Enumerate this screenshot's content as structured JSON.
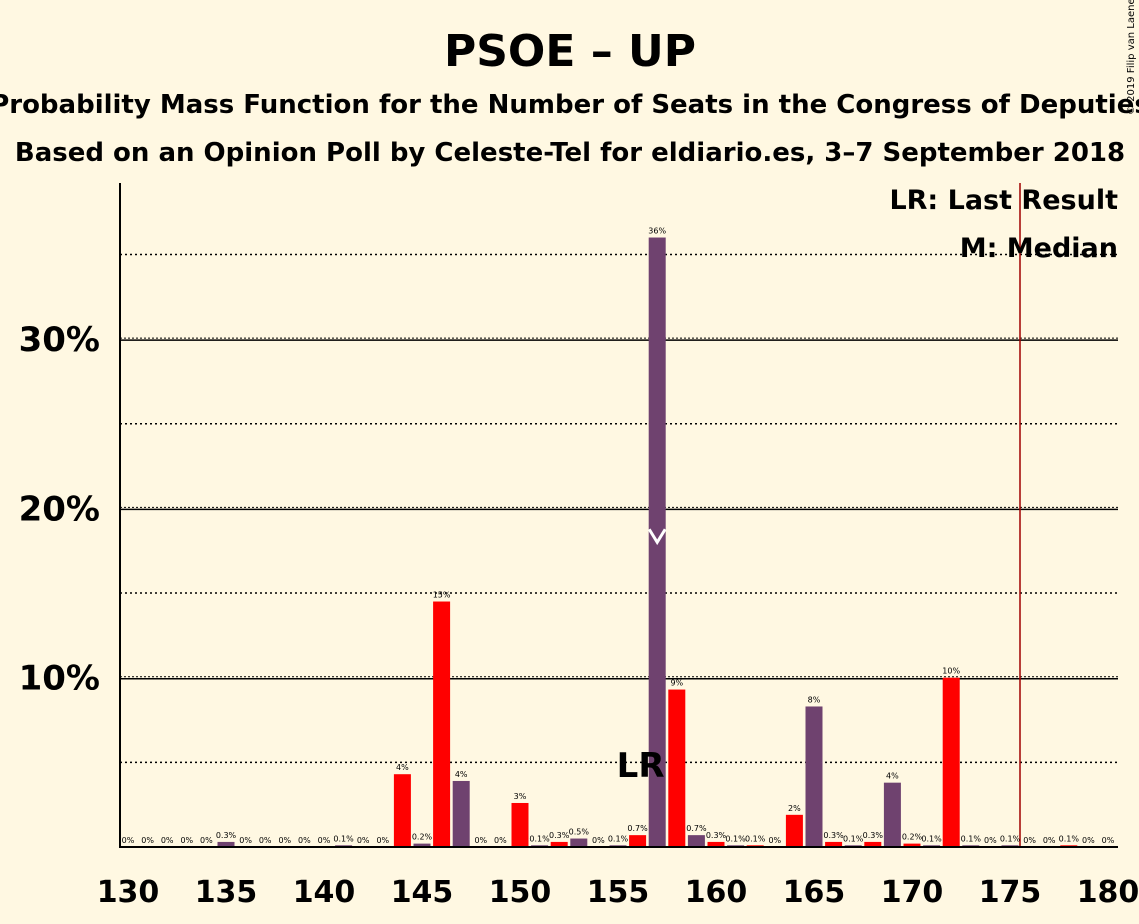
{
  "chart_data": {
    "type": "bar",
    "title": "PSOE – UP",
    "subtitle": "Probability Mass Function for the Number of Seats in the Congress of Deputies",
    "subtitle2": "Based on an Opinion Poll by Celeste-Tel for eldiario.es, 3–7 September 2018",
    "copyright": "© 2019 Filip van Laenen",
    "legend": {
      "lr": "LR: Last Result",
      "m": "M: Median",
      "placement": "top-right"
    },
    "lr_marker_text": "LR",
    "last_result_seats": 156,
    "median_seats": 157,
    "majority_line_seats": 176,
    "x": [
      130,
      131,
      132,
      133,
      134,
      135,
      136,
      137,
      138,
      139,
      140,
      141,
      142,
      143,
      144,
      145,
      146,
      147,
      148,
      149,
      150,
      151,
      152,
      153,
      154,
      155,
      156,
      157,
      158,
      159,
      160,
      161,
      162,
      163,
      164,
      165,
      166,
      167,
      168,
      169,
      170,
      171,
      172,
      173,
      174,
      175,
      176,
      177,
      178,
      179,
      180
    ],
    "values": [
      0,
      0,
      0,
      0,
      0,
      0.3,
      0,
      0,
      0,
      0,
      0,
      0.1,
      0,
      0,
      4.3,
      0.2,
      14.5,
      3.9,
      0,
      0,
      2.6,
      0.1,
      0.3,
      0.5,
      0,
      0.1,
      0.7,
      36,
      9.3,
      0.7,
      0.3,
      0.1,
      0.1,
      0,
      1.9,
      8.3,
      0.3,
      0.1,
      0.3,
      3.8,
      0.2,
      0.1,
      10,
      0.1,
      0,
      0.1,
      0,
      0,
      0.1,
      0,
      0
    ],
    "labels": [
      "0%",
      "0%",
      "0%",
      "0%",
      "0%",
      "0.3%",
      "0%",
      "0%",
      "0%",
      "0%",
      "0%",
      "0.1%",
      "0%",
      "0%",
      "4%",
      "0.2%",
      "15%",
      "4%",
      "0%",
      "0%",
      "3%",
      "0.1%",
      "0.3%",
      "0.5%",
      "0%",
      "0.1%",
      "0.7%",
      "36%",
      "9%",
      "0.7%",
      "0.3%",
      "0.1%",
      "0.1%",
      "0%",
      "2%",
      "8%",
      "0.3%",
      "0.1%",
      "0.3%",
      "4%",
      "0.2%",
      "0.1%",
      "10%",
      "0.1%",
      "0%",
      "0.1%",
      "0%",
      "0%",
      "0.1%",
      "0%",
      "0%"
    ],
    "xticks": [
      130,
      135,
      140,
      145,
      150,
      155,
      160,
      165,
      170,
      175,
      180
    ],
    "xtick_labels": [
      "130",
      "135",
      "140",
      "145",
      "150",
      "155",
      "160",
      "165",
      "170",
      "175",
      "180"
    ],
    "yticks": [
      10,
      20,
      30
    ],
    "ytick_labels": [
      "10%",
      "20%",
      "30%"
    ],
    "ylim": [
      0,
      39
    ],
    "xlim": [
      130,
      180
    ],
    "grid_major": [
      10,
      20,
      30
    ],
    "grid_minor": [
      5,
      15,
      25,
      35
    ],
    "colors": {
      "red": "#FF0000",
      "purple": "#6F426F",
      "background": "#FFF8E2",
      "majority": "#A00000"
    }
  }
}
